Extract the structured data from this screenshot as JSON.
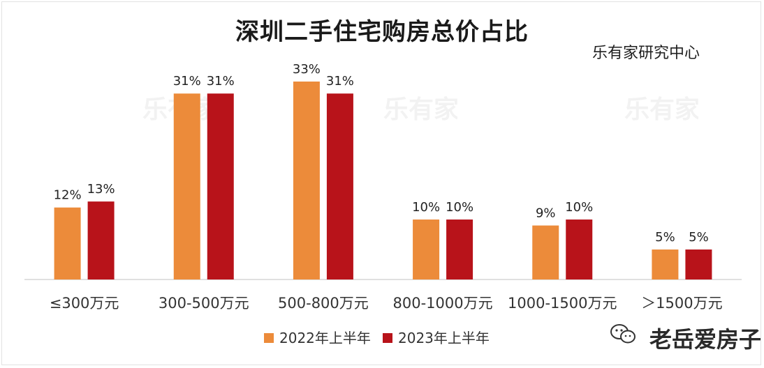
{
  "chart_data": {
    "type": "bar",
    "title": "深圳二手住宅购房总价占比",
    "source": "乐有家研究中心",
    "categories": [
      "≤300万元",
      "300-500万元",
      "500-800万元",
      "800-1000万元",
      "1000-1500万元",
      "＞1500万元"
    ],
    "series": [
      {
        "name": "2022年上半年",
        "values": [
          12,
          31,
          33,
          10,
          9,
          5
        ],
        "labels": [
          "12%",
          "31%",
          "33%",
          "10%",
          "9%",
          "5%"
        ],
        "color": "#ec8b3a"
      },
      {
        "name": "2023年上半年",
        "values": [
          13,
          31,
          31,
          10,
          10,
          5
        ],
        "labels": [
          "13%",
          "31%",
          "31%",
          "10%",
          "10%",
          "5%"
        ],
        "color": "#b8131a"
      }
    ],
    "unit": "%",
    "ylim": [
      0,
      35
    ],
    "grid": false,
    "legend": "bottom"
  },
  "watermark": {
    "corner_text": "老岳爱房子",
    "stamp_text": "乐有家",
    "icon": "chat-bubble-icon"
  }
}
